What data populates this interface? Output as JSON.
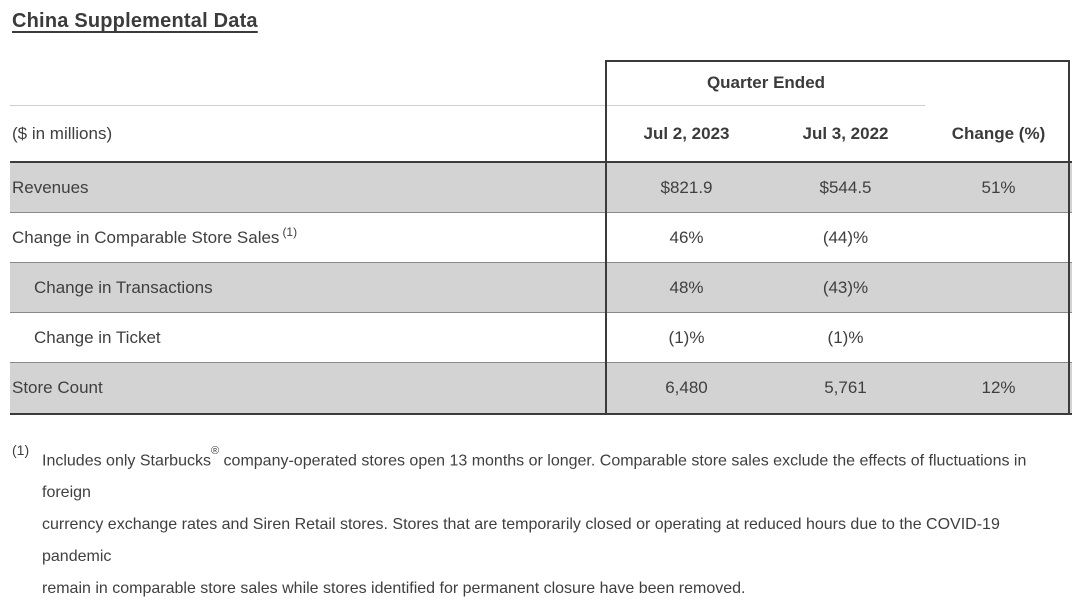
{
  "page": {
    "title": "China Supplemental Data"
  },
  "table": {
    "group_header": "Quarter Ended",
    "unit_label": "($ in millions)",
    "columns": [
      "Jul 2, 2023",
      "Jul 3, 2022",
      "Change (%)"
    ],
    "rows": [
      {
        "label": "Revenues",
        "sup": "",
        "indent": false,
        "shaded": true,
        "values": [
          "$821.9",
          "$544.5",
          "51%"
        ]
      },
      {
        "label": "Change in Comparable Store Sales",
        "sup": "(1)",
        "indent": false,
        "shaded": false,
        "values": [
          "46%",
          "(44)%",
          ""
        ]
      },
      {
        "label": "Change in Transactions",
        "sup": "",
        "indent": true,
        "shaded": true,
        "values": [
          "48%",
          "(43)%",
          ""
        ]
      },
      {
        "label": "Change in Ticket",
        "sup": "",
        "indent": true,
        "shaded": false,
        "values": [
          "(1)%",
          "(1)%",
          ""
        ]
      },
      {
        "label": "Store Count",
        "sup": "",
        "indent": false,
        "shaded": true,
        "values": [
          "6,480",
          "5,761",
          "12%"
        ]
      }
    ]
  },
  "footnote": {
    "marker": "(1)",
    "line1_pre": "Includes only Starbucks",
    "line1_sup": "®",
    "line1_post": " company-operated stores open 13 months or longer. Comparable store sales exclude the effects of fluctuations in foreign",
    "line2": "currency exchange rates and Siren Retail stores. Stores that are temporarily closed or operating at reduced hours due to the COVID-19 pandemic",
    "line3": "remain in comparable store sales while stores identified for permanent closure have been removed."
  },
  "colors": {
    "shaded_row_bg": "#d3d3d3",
    "dark_border": "#3b3b3b",
    "row_separator": "#8a8a8a",
    "light_rule": "#cfcfcf",
    "text": "#3f3f3f"
  }
}
